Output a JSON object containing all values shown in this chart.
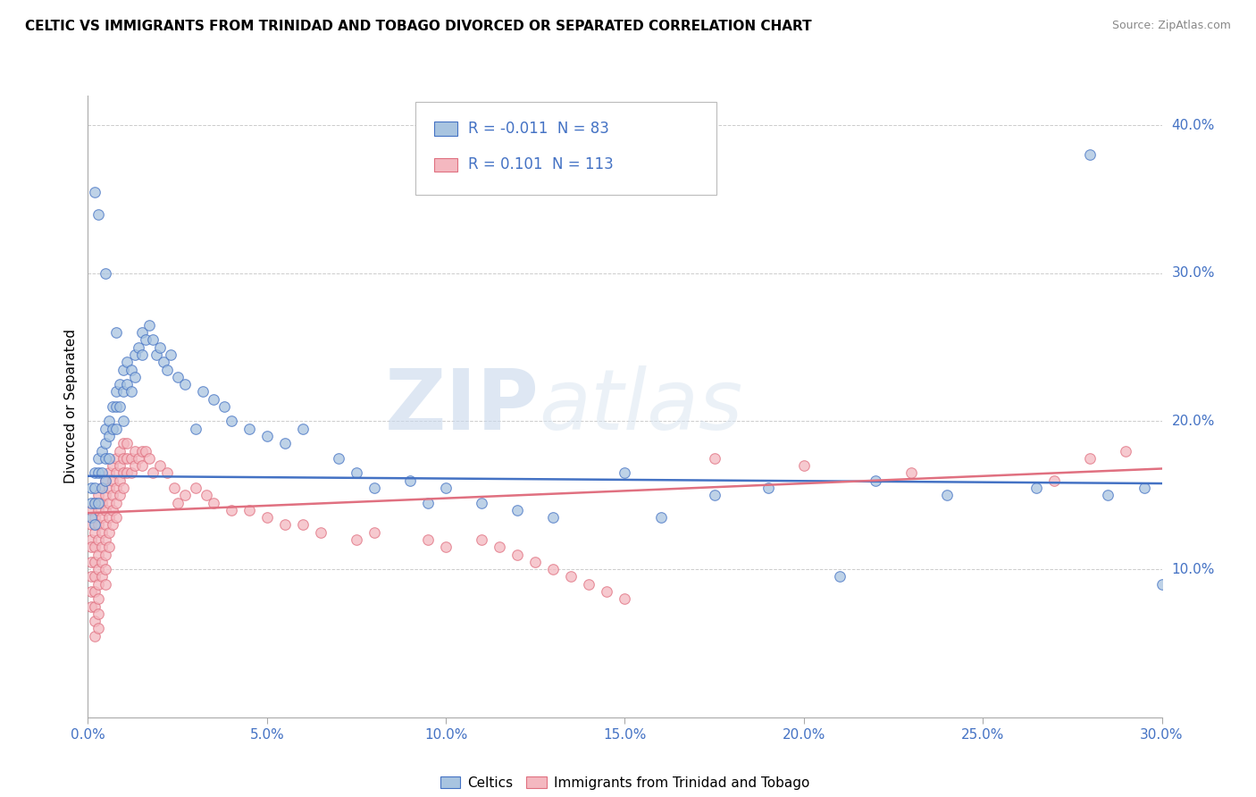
{
  "title": "CELTIC VS IMMIGRANTS FROM TRINIDAD AND TOBAGO DIVORCED OR SEPARATED CORRELATION CHART",
  "source": "Source: ZipAtlas.com",
  "ylabel": "Divorced or Separated",
  "xlim": [
    0.0,
    0.3
  ],
  "ylim": [
    0.0,
    0.42
  ],
  "xticks": [
    0.0,
    0.05,
    0.1,
    0.15,
    0.2,
    0.25,
    0.3
  ],
  "yticks": [
    0.0,
    0.1,
    0.2,
    0.3,
    0.4
  ],
  "xticklabels": [
    "0.0%",
    "5.0%",
    "10.0%",
    "15.0%",
    "20.0%",
    "25.0%",
    "30.0%"
  ],
  "yticklabels": [
    "",
    "10.0%",
    "20.0%",
    "30.0%",
    "40.0%"
  ],
  "legend_label1": "Celtics",
  "legend_label2": "Immigrants from Trinidad and Tobago",
  "r1": "-0.011",
  "n1": "83",
  "r2": "0.101",
  "n2": "113",
  "color1": "#a8c4e0",
  "color2": "#f4b8c0",
  "line_color1": "#4472c4",
  "line_color2": "#e07080",
  "reg_line1": [
    0.163,
    0.158
  ],
  "reg_line2": [
    0.138,
    0.168
  ],
  "scatter1_x": [
    0.001,
    0.001,
    0.001,
    0.002,
    0.002,
    0.002,
    0.002,
    0.003,
    0.003,
    0.003,
    0.004,
    0.004,
    0.004,
    0.005,
    0.005,
    0.005,
    0.005,
    0.006,
    0.006,
    0.006,
    0.007,
    0.007,
    0.008,
    0.008,
    0.008,
    0.009,
    0.009,
    0.01,
    0.01,
    0.01,
    0.011,
    0.011,
    0.012,
    0.012,
    0.013,
    0.013,
    0.014,
    0.015,
    0.015,
    0.016,
    0.017,
    0.018,
    0.019,
    0.02,
    0.021,
    0.022,
    0.023,
    0.025,
    0.027,
    0.03,
    0.032,
    0.035,
    0.038,
    0.04,
    0.045,
    0.05,
    0.055,
    0.06,
    0.07,
    0.075,
    0.08,
    0.09,
    0.095,
    0.1,
    0.11,
    0.12,
    0.13,
    0.15,
    0.16,
    0.175,
    0.19,
    0.21,
    0.22,
    0.24,
    0.265,
    0.28,
    0.285,
    0.295,
    0.3,
    0.002,
    0.003,
    0.005,
    0.008
  ],
  "scatter1_y": [
    0.155,
    0.145,
    0.135,
    0.165,
    0.155,
    0.145,
    0.13,
    0.175,
    0.165,
    0.145,
    0.18,
    0.165,
    0.155,
    0.195,
    0.185,
    0.175,
    0.16,
    0.2,
    0.19,
    0.175,
    0.21,
    0.195,
    0.22,
    0.21,
    0.195,
    0.225,
    0.21,
    0.235,
    0.22,
    0.2,
    0.24,
    0.225,
    0.235,
    0.22,
    0.245,
    0.23,
    0.25,
    0.26,
    0.245,
    0.255,
    0.265,
    0.255,
    0.245,
    0.25,
    0.24,
    0.235,
    0.245,
    0.23,
    0.225,
    0.195,
    0.22,
    0.215,
    0.21,
    0.2,
    0.195,
    0.19,
    0.185,
    0.195,
    0.175,
    0.165,
    0.155,
    0.16,
    0.145,
    0.155,
    0.145,
    0.14,
    0.135,
    0.165,
    0.135,
    0.15,
    0.155,
    0.095,
    0.16,
    0.15,
    0.155,
    0.38,
    0.15,
    0.155,
    0.09,
    0.355,
    0.34,
    0.3,
    0.26
  ],
  "scatter2_x": [
    0.001,
    0.001,
    0.001,
    0.001,
    0.001,
    0.001,
    0.001,
    0.001,
    0.002,
    0.002,
    0.002,
    0.002,
    0.002,
    0.002,
    0.002,
    0.002,
    0.002,
    0.002,
    0.003,
    0.003,
    0.003,
    0.003,
    0.003,
    0.003,
    0.003,
    0.003,
    0.003,
    0.003,
    0.004,
    0.004,
    0.004,
    0.004,
    0.004,
    0.004,
    0.004,
    0.005,
    0.005,
    0.005,
    0.005,
    0.005,
    0.005,
    0.005,
    0.005,
    0.006,
    0.006,
    0.006,
    0.006,
    0.006,
    0.006,
    0.007,
    0.007,
    0.007,
    0.007,
    0.007,
    0.008,
    0.008,
    0.008,
    0.008,
    0.008,
    0.009,
    0.009,
    0.009,
    0.009,
    0.01,
    0.01,
    0.01,
    0.01,
    0.011,
    0.011,
    0.011,
    0.012,
    0.012,
    0.013,
    0.013,
    0.014,
    0.015,
    0.015,
    0.016,
    0.017,
    0.018,
    0.02,
    0.022,
    0.024,
    0.025,
    0.027,
    0.03,
    0.033,
    0.035,
    0.04,
    0.045,
    0.05,
    0.055,
    0.06,
    0.065,
    0.075,
    0.08,
    0.095,
    0.1,
    0.11,
    0.115,
    0.12,
    0.125,
    0.13,
    0.135,
    0.14,
    0.145,
    0.15,
    0.175,
    0.2,
    0.23,
    0.27,
    0.28,
    0.29
  ],
  "scatter2_y": [
    0.14,
    0.13,
    0.12,
    0.115,
    0.105,
    0.095,
    0.085,
    0.075,
    0.145,
    0.135,
    0.125,
    0.115,
    0.105,
    0.095,
    0.085,
    0.075,
    0.065,
    0.055,
    0.15,
    0.14,
    0.13,
    0.12,
    0.11,
    0.1,
    0.09,
    0.08,
    0.07,
    0.06,
    0.155,
    0.145,
    0.135,
    0.125,
    0.115,
    0.105,
    0.095,
    0.16,
    0.15,
    0.14,
    0.13,
    0.12,
    0.11,
    0.1,
    0.09,
    0.165,
    0.155,
    0.145,
    0.135,
    0.125,
    0.115,
    0.17,
    0.16,
    0.15,
    0.14,
    0.13,
    0.175,
    0.165,
    0.155,
    0.145,
    0.135,
    0.18,
    0.17,
    0.16,
    0.15,
    0.185,
    0.175,
    0.165,
    0.155,
    0.185,
    0.175,
    0.165,
    0.175,
    0.165,
    0.18,
    0.17,
    0.175,
    0.18,
    0.17,
    0.18,
    0.175,
    0.165,
    0.17,
    0.165,
    0.155,
    0.145,
    0.15,
    0.155,
    0.15,
    0.145,
    0.14,
    0.14,
    0.135,
    0.13,
    0.13,
    0.125,
    0.12,
    0.125,
    0.12,
    0.115,
    0.12,
    0.115,
    0.11,
    0.105,
    0.1,
    0.095,
    0.09,
    0.085,
    0.08,
    0.175,
    0.17,
    0.165,
    0.16,
    0.175,
    0.18
  ],
  "watermark_zip": "ZIP",
  "watermark_atlas": "atlas",
  "background_color": "#ffffff",
  "grid_color": "#cccccc"
}
